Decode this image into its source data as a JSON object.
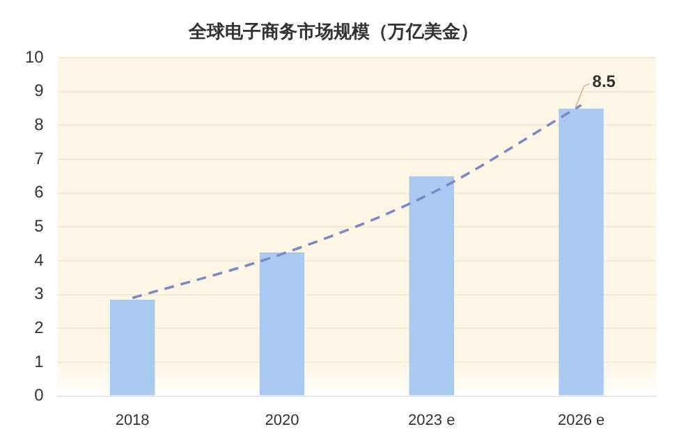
{
  "chart_data": {
    "type": "bar",
    "title": "全球电子商务市场规模（万亿美金）",
    "categories": [
      "2018",
      "2020",
      "2023 e",
      "2026 e"
    ],
    "series": [
      {
        "color": "#a8c9f0",
        "values": [
          2.85,
          4.25,
          6.5,
          8.5
        ],
        "value_labels": [
          null,
          null,
          null,
          "8.5"
        ]
      },
      {
        "type": "line",
        "color": "#7b88c9",
        "values": [
          2.9,
          4.2,
          6.0,
          8.6
        ],
        "line_style": "dashed",
        "marker": "none"
      }
    ],
    "ylim": [
      0,
      10
    ],
    "yticks": [
      0,
      1,
      2,
      3,
      4,
      5,
      6,
      7,
      8,
      9,
      10
    ],
    "grid": "y",
    "legend": false
  }
}
